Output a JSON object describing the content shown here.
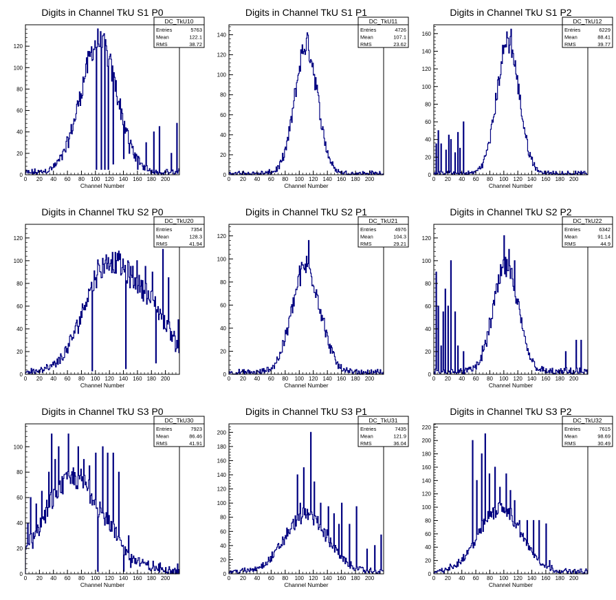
{
  "chart_data": [
    {
      "type": "bar",
      "title": "Digits in Channel TkU S1 P0",
      "xlabel": "Channel Number",
      "xlim": [
        0,
        220
      ],
      "ylim": [
        0,
        140
      ],
      "xticks": [
        0,
        20,
        40,
        60,
        80,
        100,
        120,
        140,
        160,
        180,
        200
      ],
      "yticks": [
        0,
        20,
        40,
        60,
        80,
        100,
        120
      ],
      "stats": {
        "name": "DC_TkU10",
        "entries": "5763",
        "mean": "122.1",
        "rms": "38.72"
      },
      "profile": {
        "c": [
          [
            105,
            122,
            26
          ]
        ],
        "f": 4,
        "spikes": [
          [
            101,
            5
          ],
          [
            108,
            5
          ],
          [
            113,
            5
          ],
          [
            118,
            5
          ],
          [
            125,
            10
          ],
          [
            140,
            15
          ],
          [
            148,
            20
          ],
          [
            160,
            5
          ],
          [
            172,
            30
          ],
          [
            183,
            40
          ],
          [
            191,
            45
          ],
          [
            201,
            5
          ],
          [
            208,
            20
          ],
          [
            216,
            48
          ]
        ]
      }
    },
    {
      "type": "bar",
      "title": "Digits in Channel TkU S1 P1",
      "xlabel": "Channel Number",
      "xlim": [
        0,
        220
      ],
      "ylim": [
        0,
        150
      ],
      "xticks": [
        0,
        20,
        40,
        60,
        80,
        100,
        120,
        140,
        160,
        180,
        200
      ],
      "yticks": [
        0,
        20,
        40,
        60,
        80,
        100,
        120,
        140
      ],
      "stats": {
        "name": "DC_TkU11",
        "entries": "4726",
        "mean": "107.1",
        "rms": "23.62"
      },
      "profile": {
        "c": [
          [
            110,
            128,
            16
          ]
        ],
        "f": 3,
        "spikes": [
          [
            111,
            142
          ]
        ]
      }
    },
    {
      "type": "bar",
      "title": "Digits in Channel TkU S1 P2",
      "xlabel": "Channel Number",
      "xlim": [
        0,
        220
      ],
      "ylim": [
        0,
        170
      ],
      "xticks": [
        0,
        20,
        40,
        60,
        80,
        100,
        120,
        140,
        160,
        180,
        200
      ],
      "yticks": [
        0,
        20,
        40,
        60,
        80,
        100,
        120,
        140,
        160
      ],
      "stats": {
        "name": "DC_TkU12",
        "entries": "6229",
        "mean": "88.41",
        "rms": "39.77"
      },
      "profile": {
        "c": [
          [
            106,
            148,
            16
          ]
        ],
        "f": 3,
        "spikes": [
          [
            3,
            35
          ],
          [
            6,
            50
          ],
          [
            10,
            35
          ],
          [
            17,
            28
          ],
          [
            21,
            45
          ],
          [
            24,
            40
          ],
          [
            30,
            25
          ],
          [
            34,
            48
          ],
          [
            37,
            30
          ],
          [
            42,
            60
          ],
          [
            104,
            162
          ],
          [
            110,
            165
          ]
        ]
      }
    },
    {
      "type": "bar",
      "title": "Digits in Channel TkU S2 P0",
      "xlabel": "Channel Number",
      "xlim": [
        0,
        220
      ],
      "ylim": [
        0,
        132
      ],
      "xticks": [
        0,
        20,
        40,
        60,
        80,
        100,
        120,
        140,
        160,
        180,
        200
      ],
      "yticks": [
        0,
        20,
        40,
        60,
        80,
        100,
        120
      ],
      "stats": {
        "name": "DC_TkU20",
        "entries": "7354",
        "mean": "128.3",
        "rms": "41.94"
      },
      "profile": {
        "c": [
          [
            110,
            80,
            30
          ],
          [
            170,
            60,
            35
          ]
        ],
        "f": 5,
        "spikes": [
          [
            95,
            3
          ],
          [
            107,
            90
          ],
          [
            132,
            100
          ],
          [
            143,
            5
          ],
          [
            150,
            95
          ],
          [
            159,
            100
          ],
          [
            171,
            95
          ],
          [
            181,
            90
          ],
          [
            186,
            10
          ],
          [
            196,
            110
          ],
          [
            204,
            85
          ],
          [
            214,
            20
          ],
          [
            218,
            48
          ]
        ]
      }
    },
    {
      "type": "bar",
      "title": "Digits in Channel TkU S2 P1",
      "xlabel": "Channel Number",
      "xlim": [
        0,
        220
      ],
      "ylim": [
        0,
        130
      ],
      "xticks": [
        0,
        20,
        40,
        60,
        80,
        100,
        120,
        140,
        160,
        180,
        200
      ],
      "yticks": [
        0,
        20,
        40,
        60,
        80,
        100,
        120
      ],
      "stats": {
        "name": "DC_TkU21",
        "entries": "4976",
        "mean": "104.3",
        "rms": "29.21"
      },
      "profile": {
        "c": [
          [
            110,
            92,
            20
          ]
        ],
        "f": 3,
        "spikes": [
          [
            113,
            116
          ]
        ]
      }
    },
    {
      "type": "bar",
      "title": "Digits in Channel TkU S2 P2",
      "xlabel": "Channel Number",
      "xlim": [
        0,
        220
      ],
      "ylim": [
        0,
        132
      ],
      "xticks": [
        0,
        20,
        40,
        60,
        80,
        100,
        120,
        140,
        160,
        180,
        200
      ],
      "yticks": [
        0,
        20,
        40,
        60,
        80,
        100,
        120
      ],
      "stats": {
        "name": "DC_TkU22",
        "entries": "6342",
        "mean": "91.14",
        "rms": "44.9"
      },
      "profile": {
        "c": [
          [
            103,
            92,
            18
          ]
        ],
        "f": 4,
        "spikes": [
          [
            3,
            90
          ],
          [
            6,
            60
          ],
          [
            10,
            25
          ],
          [
            13,
            55
          ],
          [
            16,
            75
          ],
          [
            20,
            60
          ],
          [
            24,
            100
          ],
          [
            30,
            55
          ],
          [
            34,
            25
          ],
          [
            38,
            5
          ],
          [
            42,
            20
          ],
          [
            46,
            5
          ],
          [
            100,
            122
          ],
          [
            107,
            110
          ],
          [
            115,
            100
          ],
          [
            188,
            20
          ],
          [
            203,
            30
          ],
          [
            210,
            30
          ]
        ]
      }
    },
    {
      "type": "bar",
      "title": "Digits in Channel TkU S3 P0",
      "xlabel": "Channel Number",
      "xlim": [
        0,
        220
      ],
      "ylim": [
        0,
        118
      ],
      "xticks": [
        0,
        20,
        40,
        60,
        80,
        100,
        120,
        140,
        160,
        180,
        200
      ],
      "yticks": [
        0,
        20,
        40,
        60,
        80,
        100
      ],
      "stats": {
        "name": "DC_TkU30",
        "entries": "7923",
        "mean": "86.46",
        "rms": "41.91"
      },
      "profile": {
        "c": [
          [
            70,
            72,
            42
          ]
        ],
        "f": 6,
        "spikes": [
          [
            3,
            40
          ],
          [
            7,
            60
          ],
          [
            10,
            20
          ],
          [
            15,
            55
          ],
          [
            19,
            30
          ],
          [
            23,
            65
          ],
          [
            28,
            40
          ],
          [
            33,
            80
          ],
          [
            37,
            110
          ],
          [
            42,
            90
          ],
          [
            47,
            100
          ],
          [
            54,
            75
          ],
          [
            61,
            110
          ],
          [
            69,
            70
          ],
          [
            75,
            100
          ],
          [
            83,
            90
          ],
          [
            91,
            85
          ],
          [
            100,
            95
          ],
          [
            103,
            2
          ],
          [
            110,
            100
          ],
          [
            117,
            95
          ],
          [
            125,
            95
          ],
          [
            133,
            80
          ],
          [
            140,
            2
          ],
          [
            147,
            30
          ],
          [
            150,
            5
          ]
        ]
      }
    },
    {
      "type": "bar",
      "title": "Digits in Channel TkU S3 P1",
      "xlabel": "Channel Number",
      "xlim": [
        0,
        220
      ],
      "ylim": [
        0,
        212
      ],
      "xticks": [
        0,
        20,
        40,
        60,
        80,
        100,
        120,
        140,
        160,
        180,
        200
      ],
      "yticks": [
        0,
        20,
        40,
        60,
        80,
        100,
        120,
        140,
        160,
        180,
        200
      ],
      "stats": {
        "name": "DC_TkU31",
        "entries": "7435",
        "mean": "121.9",
        "rms": "36.04"
      },
      "profile": {
        "c": [
          [
            110,
            80,
            30
          ]
        ],
        "f": 6,
        "spikes": [
          [
            97,
            140
          ],
          [
            101,
            100
          ],
          [
            106,
            150
          ],
          [
            116,
            200
          ],
          [
            121,
            130
          ],
          [
            130,
            100
          ],
          [
            141,
            95
          ],
          [
            149,
            85
          ],
          [
            156,
            70
          ],
          [
            160,
            100
          ],
          [
            171,
            70
          ],
          [
            181,
            95
          ],
          [
            196,
            35
          ],
          [
            207,
            40
          ],
          [
            216,
            55
          ]
        ]
      }
    },
    {
      "type": "bar",
      "title": "Digits in Channel TkU S3 P2",
      "xlabel": "Channel Number",
      "xlim": [
        0,
        220
      ],
      "ylim": [
        0,
        225
      ],
      "xticks": [
        0,
        20,
        40,
        60,
        80,
        100,
        120,
        140,
        160,
        180,
        200
      ],
      "yticks": [
        0,
        20,
        40,
        60,
        80,
        100,
        120,
        140,
        160,
        180,
        200,
        220
      ],
      "stats": {
        "name": "DC_TkU32",
        "entries": "7615",
        "mean": "98.69",
        "rms": "30.49"
      },
      "profile": {
        "c": [
          [
            95,
            95,
            30
          ]
        ],
        "f": 6,
        "spikes": [
          [
            55,
            200
          ],
          [
            61,
            140
          ],
          [
            68,
            180
          ],
          [
            73,
            210
          ],
          [
            79,
            150
          ],
          [
            87,
            160
          ],
          [
            94,
            130
          ],
          [
            103,
            150
          ],
          [
            109,
            125
          ],
          [
            115,
            110
          ],
          [
            122,
            80
          ],
          [
            133,
            80
          ],
          [
            142,
            80
          ],
          [
            150,
            80
          ],
          [
            160,
            75
          ],
          [
            165,
            20
          ],
          [
            170,
            5
          ]
        ]
      }
    }
  ],
  "style": {
    "line_color": "#000080",
    "frame_color": "#000000",
    "background": "#ffffff"
  },
  "labels": {
    "entries": "Entries",
    "mean": "Mean",
    "rms": "RMS"
  }
}
